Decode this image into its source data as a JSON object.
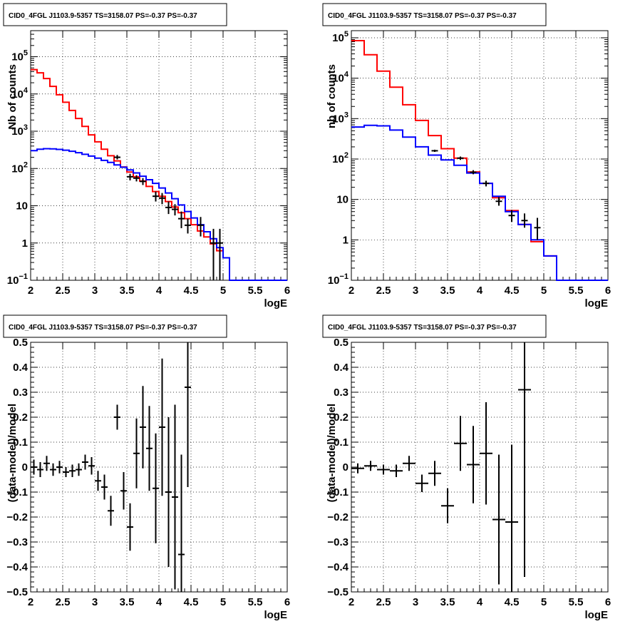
{
  "chart_data": [
    {
      "type": "line",
      "panel": "top-left",
      "title": "CID0_4FGL J1103.9-5357 TS=3158.07 PS=-0.37 PS=-0.37",
      "xlabel": "logE",
      "ylabel": "Nb of counts",
      "yscale": "log",
      "xlim": [
        2,
        6
      ],
      "ylim": [
        0.1,
        500000
      ],
      "x_ticks": [
        "2",
        "2.5",
        "3",
        "3.5",
        "4",
        "4.5",
        "5",
        "5.5",
        "6"
      ],
      "y_ticks": [
        {
          "value": 0.1,
          "base": "10",
          "exp": "−1"
        },
        {
          "value": 1,
          "label": "1"
        },
        {
          "value": 10,
          "label": "10"
        },
        {
          "value": 100,
          "base": "10",
          "exp": "2"
        },
        {
          "value": 1000,
          "base": "10",
          "exp": "3"
        },
        {
          "value": 10000,
          "base": "10",
          "exp": "4"
        },
        {
          "value": 100000,
          "base": "10",
          "exp": "5"
        }
      ],
      "grid": true,
      "bin_edges": [
        2.0,
        2.1,
        2.2,
        2.3,
        2.4,
        2.5,
        2.6,
        2.7,
        2.8,
        2.9,
        3.0,
        3.1,
        3.2,
        3.3,
        3.4,
        3.5,
        3.6,
        3.7,
        3.8,
        3.9,
        4.0,
        4.1,
        4.2,
        4.3,
        4.4,
        4.5,
        4.6,
        4.7,
        4.8,
        4.9,
        5.0,
        5.1,
        5.2,
        5.3,
        5.4,
        5.5,
        5.6,
        5.7,
        5.8,
        5.9,
        6.0
      ],
      "series": [
        {
          "color": "#ff0000",
          "style": "step",
          "values": [
            45000,
            37000,
            26000,
            16000,
            9500,
            6000,
            3600,
            2200,
            1350,
            800,
            520,
            330,
            220,
            160,
            110,
            80,
            60,
            46,
            33,
            24,
            18,
            13,
            9.2,
            6.5,
            4.5,
            3.1,
            2.1,
            1.45,
            0.95,
            0.62,
            0.4,
            0.1,
            0.1,
            0.1,
            0.1,
            0.1,
            0.1,
            0.1,
            0.1,
            0.1
          ]
        },
        {
          "color": "#0000ff",
          "style": "step",
          "values": [
            300,
            330,
            340,
            335,
            325,
            310,
            290,
            265,
            240,
            215,
            190,
            165,
            145,
            125,
            108,
            92,
            76,
            62,
            50,
            40,
            30,
            22,
            15.5,
            10.5,
            7,
            4.7,
            3.1,
            2,
            1.3,
            0.75,
            0.4,
            0.1,
            0.1,
            0.1,
            0.1,
            0.1,
            0.1,
            0.1,
            0.1,
            0.1
          ]
        },
        {
          "color": "#000000",
          "style": "points",
          "points": [
            {
              "x": 3.35,
              "y": 200,
              "ylo": 175,
              "yhi": 230
            },
            {
              "x": 3.55,
              "y": 60,
              "ylo": 48,
              "yhi": 72
            },
            {
              "x": 3.65,
              "y": 55,
              "ylo": 45,
              "yhi": 66
            },
            {
              "x": 3.75,
              "y": 45,
              "ylo": 36,
              "yhi": 55
            },
            {
              "x": 3.95,
              "y": 18,
              "ylo": 13,
              "yhi": 24
            },
            {
              "x": 4.05,
              "y": 16,
              "ylo": 11,
              "yhi": 22
            },
            {
              "x": 4.15,
              "y": 9,
              "ylo": 6,
              "yhi": 13
            },
            {
              "x": 4.25,
              "y": 8,
              "ylo": 5.5,
              "yhi": 11
            },
            {
              "x": 4.35,
              "y": 4.5,
              "ylo": 2.5,
              "yhi": 7
            },
            {
              "x": 4.45,
              "y": 3,
              "ylo": 1.8,
              "yhi": 4.5
            },
            {
              "x": 4.65,
              "y": 3,
              "ylo": 1.5,
              "yhi": 5
            },
            {
              "x": 4.85,
              "y": 1,
              "ylo": 0.1,
              "yhi": 2.4
            },
            {
              "x": 4.95,
              "y": 1,
              "ylo": 0.1,
              "yhi": 2.4
            }
          ]
        }
      ]
    },
    {
      "type": "line",
      "panel": "top-right",
      "title": "CID0_4FGL J1103.9-5357 TS=3158.07 PS=-0.37 PS=-0.37",
      "xlabel": "logE",
      "ylabel": "nb of counts",
      "yscale": "log",
      "xlim": [
        2,
        6
      ],
      "ylim": [
        0.1,
        150000
      ],
      "x_ticks": [
        "2",
        "2.5",
        "3",
        "3.5",
        "4",
        "4.5",
        "5",
        "5.5",
        "6"
      ],
      "y_ticks": [
        {
          "value": 0.1,
          "base": "10",
          "exp": "−1"
        },
        {
          "value": 1,
          "label": "1"
        },
        {
          "value": 10,
          "label": "10"
        },
        {
          "value": 100,
          "base": "10",
          "exp": "2"
        },
        {
          "value": 1000,
          "base": "10",
          "exp": "3"
        },
        {
          "value": 10000,
          "base": "10",
          "exp": "4"
        },
        {
          "value": 100000,
          "base": "10",
          "exp": "5"
        }
      ],
      "grid": true,
      "bin_edges": [
        2.0,
        2.2,
        2.4,
        2.6,
        2.8,
        3.0,
        3.2,
        3.4,
        3.6,
        3.8,
        4.0,
        4.2,
        4.4,
        4.6,
        4.8,
        5.0,
        5.2,
        5.4,
        5.6,
        5.8,
        6.0
      ],
      "series": [
        {
          "color": "#ff0000",
          "style": "step",
          "values": [
            85000,
            38000,
            15000,
            6000,
            2200,
            900,
            380,
            180,
            105,
            48,
            25,
            11,
            5.3,
            2.4,
            0.9,
            0.4,
            0.1,
            0.1,
            0.1,
            0.1
          ]
        },
        {
          "color": "#0000ff",
          "style": "step",
          "values": [
            620,
            680,
            660,
            520,
            350,
            200,
            125,
            95,
            70,
            45,
            25,
            12,
            5,
            2.4,
            1,
            0.4,
            0.1,
            0.1,
            0.1,
            0.1
          ]
        },
        {
          "color": "#000000",
          "style": "points",
          "points": [
            {
              "x": 3.3,
              "y": 160,
              "ylo": 150,
              "yhi": 170
            },
            {
              "x": 3.7,
              "y": 105,
              "ylo": 95,
              "yhi": 115
            },
            {
              "x": 3.9,
              "y": 47,
              "ylo": 42,
              "yhi": 53
            },
            {
              "x": 4.1,
              "y": 25,
              "ylo": 21,
              "yhi": 29
            },
            {
              "x": 4.3,
              "y": 9,
              "ylo": 7,
              "yhi": 11.5
            },
            {
              "x": 4.5,
              "y": 4,
              "ylo": 2.8,
              "yhi": 5.5
            },
            {
              "x": 4.7,
              "y": 3,
              "ylo": 2,
              "yhi": 4.5
            },
            {
              "x": 4.9,
              "y": 2,
              "ylo": 1,
              "yhi": 3.5
            }
          ]
        }
      ]
    },
    {
      "type": "scatter",
      "panel": "bottom-left",
      "title": "CID0_4FGL J1103.9-5357 TS=3158.07 PS=-0.37 PS=-0.37",
      "xlabel": "logE",
      "ylabel": "(data-model)/model",
      "xlim": [
        2,
        6
      ],
      "ylim": [
        -0.5,
        0.5
      ],
      "x_ticks": [
        "2",
        "2.5",
        "3",
        "3.5",
        "4",
        "4.5",
        "5",
        "5.5",
        "6"
      ],
      "y_ticks": [
        "0.5",
        "0.4",
        "0.3",
        "0.2",
        "0.1",
        "0",
        "−0.1",
        "−0.2",
        "−0.3",
        "−0.4",
        "−0.5"
      ],
      "grid": true,
      "xerr": 0.05,
      "points": [
        {
          "x": 2.05,
          "y": 0.0,
          "err": 0.03
        },
        {
          "x": 2.15,
          "y": -0.01,
          "err": 0.03
        },
        {
          "x": 2.25,
          "y": 0.015,
          "err": 0.03
        },
        {
          "x": 2.35,
          "y": -0.01,
          "err": 0.025
        },
        {
          "x": 2.45,
          "y": 0.0,
          "err": 0.025
        },
        {
          "x": 2.55,
          "y": -0.02,
          "err": 0.02
        },
        {
          "x": 2.65,
          "y": -0.015,
          "err": 0.025
        },
        {
          "x": 2.75,
          "y": -0.01,
          "err": 0.025
        },
        {
          "x": 2.85,
          "y": 0.02,
          "err": 0.03
        },
        {
          "x": 2.95,
          "y": 0.005,
          "err": 0.035
        },
        {
          "x": 3.05,
          "y": -0.055,
          "err": 0.04
        },
        {
          "x": 3.15,
          "y": -0.08,
          "err": 0.05
        },
        {
          "x": 3.25,
          "y": -0.175,
          "err": 0.06
        },
        {
          "x": 3.35,
          "y": 0.2,
          "err": 0.05
        },
        {
          "x": 3.45,
          "y": -0.095,
          "err": 0.075
        },
        {
          "x": 3.55,
          "y": -0.24,
          "err": 0.095
        },
        {
          "x": 3.65,
          "y": 0.055,
          "err": 0.14
        },
        {
          "x": 3.75,
          "y": 0.16,
          "err": 0.165
        },
        {
          "x": 3.85,
          "y": 0.075,
          "err": 0.17
        },
        {
          "x": 3.95,
          "y": -0.085,
          "err": 0.22
        },
        {
          "x": 4.05,
          "y": 0.16,
          "err": 0.275
        },
        {
          "x": 4.15,
          "y": -0.1,
          "err": 0.3
        },
        {
          "x": 4.25,
          "y": -0.12,
          "err": 0.37
        },
        {
          "x": 4.35,
          "y": -0.35,
          "err": 0.4
        },
        {
          "x": 4.45,
          "y": 0.32,
          "err": 0.4
        }
      ]
    },
    {
      "type": "scatter",
      "panel": "bottom-right",
      "title": "CID0_4FGL J1103.9-5357 TS=3158.07 PS=-0.37 PS=-0.37",
      "xlabel": "logE",
      "ylabel": "(data-model)/model",
      "xlim": [
        2,
        6
      ],
      "ylim": [
        -0.5,
        0.5
      ],
      "x_ticks": [
        "2",
        "2.5",
        "3",
        "3.5",
        "4",
        "4.5",
        "5",
        "5.5",
        "6"
      ],
      "y_ticks": [
        "0.5",
        "0.4",
        "0.3",
        "0.2",
        "0.1",
        "0",
        "−0.1",
        "−0.2",
        "−0.3",
        "−0.4",
        "−0.5"
      ],
      "grid": true,
      "xerr": 0.1,
      "points": [
        {
          "x": 2.1,
          "y": -0.005,
          "err": 0.02
        },
        {
          "x": 2.3,
          "y": 0.005,
          "err": 0.02
        },
        {
          "x": 2.5,
          "y": -0.01,
          "err": 0.02
        },
        {
          "x": 2.7,
          "y": -0.015,
          "err": 0.025
        },
        {
          "x": 2.9,
          "y": 0.015,
          "err": 0.03
        },
        {
          "x": 3.1,
          "y": -0.065,
          "err": 0.035
        },
        {
          "x": 3.3,
          "y": -0.025,
          "err": 0.05
        },
        {
          "x": 3.5,
          "y": -0.155,
          "err": 0.07
        },
        {
          "x": 3.7,
          "y": 0.095,
          "err": 0.11
        },
        {
          "x": 3.9,
          "y": 0.01,
          "err": 0.155
        },
        {
          "x": 4.1,
          "y": 0.055,
          "err": 0.205
        },
        {
          "x": 4.3,
          "y": -0.21,
          "err": 0.26
        },
        {
          "x": 4.5,
          "y": -0.22,
          "err": 0.31
        },
        {
          "x": 4.7,
          "y": 0.31,
          "err": 0.75
        }
      ]
    }
  ]
}
